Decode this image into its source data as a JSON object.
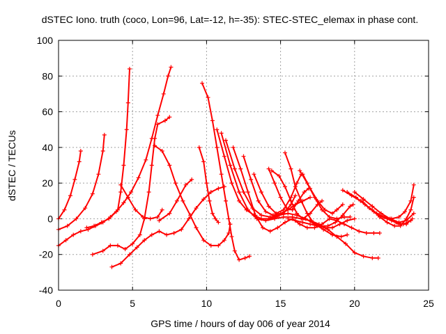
{
  "chart_data": {
    "type": "scatter",
    "title": "dSTEC Iono. truth (coco, Lon=96, Lat=-12, h=-35): STEC-STEC_elemax in phase cont.",
    "xlabel": "GPS time / hours of day 006 of year 2014",
    "ylabel": "dSTEC  / TECUs",
    "xlim": [
      0,
      25
    ],
    "ylim": [
      -40,
      100
    ],
    "xticks": [
      0,
      5,
      10,
      15,
      20,
      25
    ],
    "yticks": [
      -40,
      -20,
      0,
      20,
      40,
      60,
      80,
      100
    ],
    "grid": true,
    "marker": "plus",
    "color": "#ff0000",
    "series": [
      {
        "points": [
          [
            0.0,
            0.0
          ],
          [
            0.4,
            5
          ],
          [
            0.8,
            13
          ],
          [
            1.1,
            22
          ],
          [
            1.4,
            32
          ],
          [
            1.5,
            38
          ]
        ]
      },
      {
        "points": [
          [
            0.0,
            -6
          ],
          [
            0.6,
            -4
          ],
          [
            1.2,
            0
          ],
          [
            1.8,
            6
          ],
          [
            2.3,
            14
          ],
          [
            2.7,
            25
          ],
          [
            3.0,
            38
          ],
          [
            3.1,
            47
          ]
        ]
      },
      {
        "points": [
          [
            0.0,
            -15
          ],
          [
            0.5,
            -12
          ],
          [
            1.0,
            -9
          ],
          [
            1.5,
            -7
          ],
          [
            2.0,
            -6
          ],
          [
            2.5,
            -4
          ],
          [
            3.0,
            -2
          ],
          [
            3.5,
            1
          ],
          [
            4.0,
            5
          ],
          [
            4.2,
            15
          ],
          [
            4.4,
            30
          ],
          [
            4.6,
            50
          ],
          [
            4.7,
            65
          ],
          [
            4.8,
            84
          ]
        ]
      },
      {
        "points": [
          [
            1.9,
            -5
          ],
          [
            2.4,
            -4
          ],
          [
            2.9,
            -2
          ],
          [
            3.4,
            0
          ],
          [
            3.9,
            4
          ],
          [
            4.4,
            9
          ],
          [
            4.9,
            15
          ],
          [
            5.4,
            23
          ],
          [
            5.9,
            33
          ],
          [
            6.3,
            45
          ],
          [
            6.7,
            58
          ],
          [
            7.1,
            70
          ],
          [
            7.4,
            80
          ],
          [
            7.6,
            85
          ]
        ]
      },
      {
        "points": [
          [
            2.3,
            -20
          ],
          [
            3.0,
            -18
          ],
          [
            3.5,
            -15
          ],
          [
            4.0,
            -15
          ],
          [
            4.5,
            -17
          ],
          [
            5.0,
            -14
          ],
          [
            5.5,
            -9
          ],
          [
            5.8,
            0
          ],
          [
            6.1,
            15
          ],
          [
            6.3,
            30
          ],
          [
            6.5,
            45
          ],
          [
            6.7,
            53
          ],
          [
            7.2,
            55
          ],
          [
            7.5,
            57
          ]
        ]
      },
      {
        "points": [
          [
            3.6,
            -27
          ],
          [
            4.2,
            -25
          ],
          [
            4.8,
            -20
          ],
          [
            5.3,
            -16
          ],
          [
            5.8,
            -12
          ],
          [
            6.3,
            -9
          ],
          [
            6.8,
            -7
          ],
          [
            7.3,
            -9
          ],
          [
            7.8,
            -8
          ],
          [
            8.3,
            -6
          ],
          [
            8.8,
            0
          ],
          [
            9.3,
            6
          ],
          [
            9.8,
            11
          ],
          [
            10.3,
            15
          ],
          [
            10.8,
            17
          ],
          [
            11.2,
            18
          ]
        ]
      },
      {
        "points": [
          [
            4.2,
            19
          ],
          [
            4.7,
            12
          ],
          [
            5.2,
            5
          ],
          [
            5.7,
            1
          ],
          [
            6.2,
            0
          ],
          [
            6.7,
            1
          ],
          [
            7.0,
            5
          ]
        ]
      },
      {
        "points": [
          [
            6.5,
            41
          ],
          [
            7.0,
            38
          ],
          [
            7.5,
            30
          ],
          [
            7.9,
            20
          ],
          [
            8.4,
            10
          ],
          [
            8.9,
            2
          ],
          [
            9.3,
            -5
          ],
          [
            9.8,
            -12
          ],
          [
            10.3,
            -15
          ],
          [
            10.8,
            -15
          ],
          [
            11.2,
            -12
          ],
          [
            11.5,
            -8
          ],
          [
            11.6,
            -3
          ]
        ]
      },
      {
        "points": [
          [
            6.8,
            -1
          ],
          [
            7.5,
            3
          ],
          [
            8.0,
            10
          ],
          [
            8.6,
            19
          ],
          [
            9.0,
            22
          ]
        ]
      },
      {
        "points": [
          [
            9.5,
            40
          ],
          [
            9.8,
            32
          ],
          [
            10.0,
            20
          ],
          [
            10.2,
            10
          ],
          [
            10.4,
            3
          ],
          [
            10.6,
            0
          ],
          [
            10.8,
            -2
          ]
        ]
      },
      {
        "points": [
          [
            9.7,
            76
          ],
          [
            10.1,
            68
          ],
          [
            10.4,
            55
          ],
          [
            10.7,
            40
          ],
          [
            11.0,
            25
          ],
          [
            11.3,
            10
          ],
          [
            11.5,
            0
          ],
          [
            11.7,
            -10
          ],
          [
            11.9,
            -18
          ],
          [
            12.2,
            -23
          ],
          [
            12.6,
            -22
          ],
          [
            12.9,
            -21
          ]
        ]
      },
      {
        "points": [
          [
            10.7,
            50
          ],
          [
            11.2,
            35
          ],
          [
            11.7,
            20
          ],
          [
            12.2,
            10
          ],
          [
            12.7,
            5
          ],
          [
            13.2,
            2
          ],
          [
            13.7,
            0
          ],
          [
            14.2,
            0
          ],
          [
            14.7,
            1
          ],
          [
            15.2,
            3
          ],
          [
            15.7,
            8
          ],
          [
            16.0,
            13
          ]
        ]
      },
      {
        "points": [
          [
            11.0,
            48
          ],
          [
            11.6,
            30
          ],
          [
            12.2,
            15
          ],
          [
            12.8,
            5
          ],
          [
            13.4,
            0
          ],
          [
            14.0,
            -1
          ],
          [
            14.6,
            0
          ],
          [
            15.2,
            1
          ],
          [
            15.8,
            1
          ],
          [
            16.4,
            0
          ],
          [
            17.0,
            -1
          ],
          [
            17.6,
            -3
          ],
          [
            18.2,
            -6
          ],
          [
            18.8,
            -10
          ],
          [
            19.4,
            -14
          ],
          [
            20.0,
            -19
          ],
          [
            20.6,
            -21
          ],
          [
            21.2,
            -22
          ],
          [
            21.6,
            -22
          ]
        ]
      },
      {
        "points": [
          [
            11.3,
            44
          ],
          [
            11.9,
            28
          ],
          [
            12.5,
            15
          ],
          [
            13.1,
            6
          ],
          [
            13.7,
            2
          ],
          [
            14.3,
            1
          ],
          [
            14.9,
            2
          ],
          [
            15.5,
            3
          ],
          [
            16.1,
            2
          ],
          [
            16.7,
            0
          ],
          [
            17.3,
            -3
          ],
          [
            17.9,
            -6
          ],
          [
            18.5,
            -9
          ],
          [
            19.1,
            -10
          ],
          [
            19.5,
            -9
          ]
        ]
      },
      {
        "points": [
          [
            11.8,
            40
          ],
          [
            12.3,
            28
          ],
          [
            12.8,
            15
          ],
          [
            13.3,
            2
          ],
          [
            13.8,
            -5
          ],
          [
            14.3,
            -7
          ],
          [
            14.8,
            -5
          ],
          [
            15.3,
            -2
          ],
          [
            15.8,
            0
          ],
          [
            16.3,
            -3
          ],
          [
            16.8,
            -5
          ],
          [
            17.3,
            -5
          ],
          [
            17.8,
            -3
          ],
          [
            18.3,
            0
          ],
          [
            18.8,
            -1
          ],
          [
            19.3,
            -3
          ],
          [
            19.8,
            -5
          ],
          [
            20.3,
            -7
          ],
          [
            20.8,
            -8
          ],
          [
            21.3,
            -8
          ],
          [
            21.7,
            -8
          ]
        ]
      },
      {
        "points": [
          [
            12.5,
            35
          ],
          [
            13.0,
            22
          ],
          [
            13.5,
            10
          ],
          [
            14.0,
            4
          ],
          [
            14.5,
            2
          ],
          [
            15.0,
            3
          ],
          [
            15.5,
            5
          ],
          [
            16.0,
            8
          ],
          [
            16.5,
            10
          ],
          [
            17.0,
            12
          ]
        ]
      },
      {
        "points": [
          [
            13.2,
            25
          ],
          [
            13.7,
            15
          ],
          [
            14.2,
            7
          ],
          [
            14.7,
            3
          ],
          [
            15.2,
            5
          ],
          [
            15.7,
            12
          ],
          [
            16.1,
            20
          ],
          [
            16.4,
            25
          ]
        ]
      },
      {
        "points": [
          [
            14.2,
            28
          ],
          [
            14.6,
            20
          ],
          [
            15.0,
            12
          ],
          [
            15.4,
            6
          ],
          [
            15.8,
            5
          ],
          [
            16.2,
            10
          ],
          [
            16.6,
            15
          ],
          [
            16.9,
            17
          ]
        ]
      },
      {
        "points": [
          [
            14.4,
            27
          ],
          [
            14.9,
            24
          ],
          [
            15.3,
            18
          ],
          [
            15.7,
            10
          ],
          [
            16.1,
            3
          ],
          [
            16.5,
            0
          ],
          [
            17.0,
            3
          ],
          [
            17.5,
            8
          ],
          [
            17.8,
            10
          ]
        ]
      },
      {
        "points": [
          [
            15.3,
            37
          ],
          [
            15.7,
            28
          ],
          [
            16.0,
            18
          ],
          [
            16.4,
            10
          ],
          [
            16.8,
            3
          ],
          [
            17.2,
            -2
          ],
          [
            17.7,
            -4
          ],
          [
            18.2,
            -4
          ],
          [
            18.7,
            -2
          ],
          [
            19.2,
            2
          ],
          [
            19.7,
            7
          ],
          [
            19.9,
            8
          ]
        ]
      },
      {
        "points": [
          [
            16.3,
            27
          ],
          [
            16.8,
            20
          ],
          [
            17.3,
            12
          ],
          [
            17.8,
            5
          ],
          [
            18.3,
            1
          ],
          [
            18.8,
            0
          ],
          [
            19.3,
            1
          ],
          [
            19.7,
            1
          ]
        ]
      },
      {
        "points": [
          [
            16.5,
            25
          ],
          [
            17.0,
            17
          ],
          [
            17.5,
            10
          ],
          [
            18.0,
            5
          ],
          [
            18.5,
            3
          ],
          [
            18.8,
            5
          ],
          [
            19.2,
            8
          ]
        ]
      },
      {
        "points": [
          [
            15.5,
            0
          ],
          [
            16.0,
            -1
          ],
          [
            16.5,
            -2
          ],
          [
            17.0,
            -3
          ],
          [
            17.5,
            -4
          ],
          [
            18.0,
            -5
          ],
          [
            18.5,
            -5
          ],
          [
            19.0,
            -3
          ],
          [
            19.5,
            -1
          ],
          [
            20.0,
            0
          ]
        ]
      },
      {
        "points": [
          [
            19.2,
            16
          ],
          [
            19.8,
            13
          ],
          [
            20.4,
            10
          ],
          [
            21.0,
            6
          ],
          [
            21.6,
            2
          ],
          [
            22.2,
            0
          ],
          [
            22.8,
            -2
          ],
          [
            23.3,
            -3
          ],
          [
            23.8,
            -1
          ]
        ]
      },
      {
        "points": [
          [
            19.5,
            15
          ],
          [
            20.1,
            12
          ],
          [
            20.7,
            8
          ],
          [
            21.3,
            4
          ],
          [
            21.9,
            1
          ],
          [
            22.5,
            -1
          ],
          [
            23.0,
            -3
          ],
          [
            23.5,
            -3
          ],
          [
            23.9,
            0
          ]
        ]
      },
      {
        "points": [
          [
            20.0,
            15
          ],
          [
            20.6,
            11
          ],
          [
            21.2,
            7
          ],
          [
            21.8,
            3
          ],
          [
            22.4,
            0
          ],
          [
            23.0,
            -2
          ],
          [
            23.5,
            -1
          ],
          [
            24.0,
            3
          ]
        ]
      },
      {
        "points": [
          [
            20.5,
            10
          ],
          [
            21.0,
            6
          ],
          [
            21.5,
            3
          ],
          [
            22.0,
            1
          ],
          [
            22.5,
            0
          ],
          [
            23.0,
            1
          ],
          [
            23.4,
            4
          ],
          [
            23.8,
            10
          ],
          [
            24.0,
            19
          ]
        ]
      },
      {
        "points": [
          [
            21.2,
            5
          ],
          [
            21.7,
            1
          ],
          [
            22.2,
            -2
          ],
          [
            22.7,
            -4
          ],
          [
            23.1,
            -4
          ],
          [
            23.5,
            0
          ],
          [
            23.8,
            5
          ],
          [
            24.0,
            12
          ]
        ]
      }
    ]
  }
}
